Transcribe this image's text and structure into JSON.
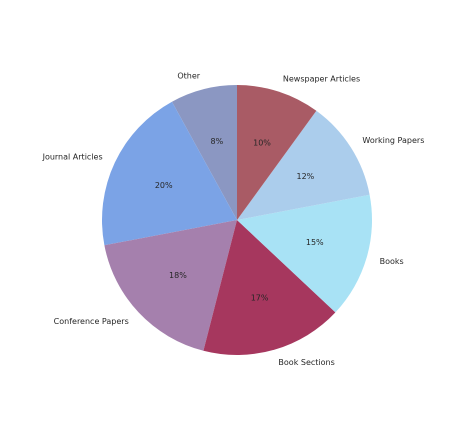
{
  "chart_data": {
    "type": "pie",
    "start_angle_deg": 90,
    "direction": "counterclockwise",
    "slices": [
      {
        "label": "Other",
        "value": 8,
        "percent_label": "8%",
        "color": "#8b97c2"
      },
      {
        "label": "Journal Articles",
        "value": 20,
        "percent_label": "20%",
        "color": "#7ba3e6"
      },
      {
        "label": "Conference Papers",
        "value": 18,
        "percent_label": "18%",
        "color": "#a580ad"
      },
      {
        "label": "Book Sections",
        "value": 17,
        "percent_label": "17%",
        "color": "#a6375e"
      },
      {
        "label": "Books",
        "value": 15,
        "percent_label": "15%",
        "color": "#a8e2f5"
      },
      {
        "label": "Working Papers",
        "value": 12,
        "percent_label": "12%",
        "color": "#abcdec"
      },
      {
        "label": "Newspaper Articles",
        "value": 10,
        "percent_label": "10%",
        "color": "#a95b65"
      }
    ]
  }
}
